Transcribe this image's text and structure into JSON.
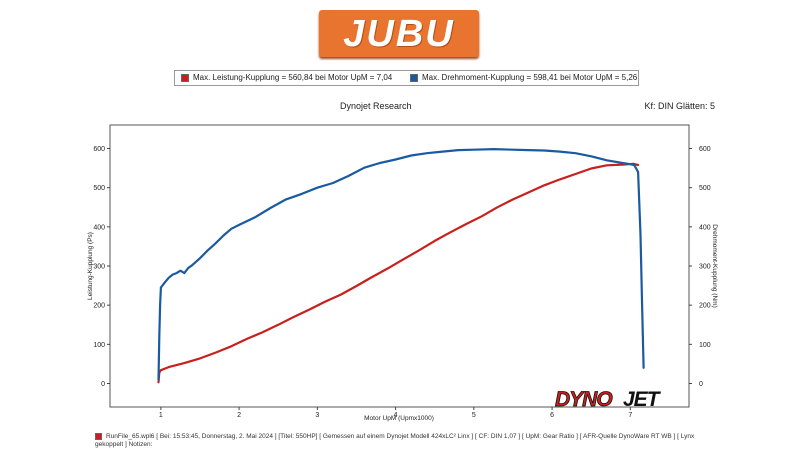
{
  "brand": {
    "logo_text": "JUBU",
    "dyno_logo": {
      "part1": "DYNO",
      "part2": "JET"
    }
  },
  "legend": {
    "items": [
      {
        "label": "Max. Leistung-Kupplung = 560,84 bei Motor UpM = 7,04",
        "color": "#c8201c"
      },
      {
        "label": "Max. Drehmoment-Kupplung = 598,41 bei Motor UpM = 5,26",
        "color": "#1a5aa0"
      }
    ]
  },
  "header": {
    "title": "Dynojet Research",
    "info": "Kf: DIN Glätten: 5"
  },
  "footer": {
    "text": "RunFile_65.wpl6 [ Bei: 15:53:45, Donnerstag, 2. Mai 2024 ] [Titel: 550HP] [ Gemessen auf einem Dynojet Modell 424xLC² Linx ] [ CF: DIN 1,07 ] [ UpM: Gear Ratio ] [ AFR-Quelle DynoWare RT WB ] [ Lynx gekoppelt ] Notizen:",
    "color": "#c8201c"
  },
  "chart_data": {
    "type": "line",
    "xlabel": "Motor UpM (Upmx1000)",
    "ylabel_left": "Leistung-Kupplung (Ps)",
    "ylabel_right": "Drehmoment-Kupplung (Nm)",
    "xlim": [
      0.35,
      7.75
    ],
    "ylim": [
      -60,
      660
    ],
    "x_ticks": [
      1,
      2,
      3,
      4,
      5,
      6,
      7
    ],
    "y_ticks": [
      0,
      100,
      200,
      300,
      400,
      500,
      600
    ],
    "grid": false,
    "legend_placement": "top",
    "series": [
      {
        "name": "Leistung-Kupplung",
        "axis": "left",
        "color": "#c8201c",
        "x": [
          0.97,
          0.98,
          1.0,
          1.05,
          1.1,
          1.2,
          1.3,
          1.5,
          1.7,
          1.9,
          2.1,
          2.3,
          2.5,
          2.7,
          2.9,
          3.1,
          3.3,
          3.5,
          3.7,
          3.9,
          4.1,
          4.3,
          4.5,
          4.7,
          4.9,
          5.1,
          5.3,
          5.5,
          5.7,
          5.9,
          6.1,
          6.3,
          6.5,
          6.7,
          6.9,
          7.04,
          7.1
        ],
        "y": [
          3,
          28,
          34,
          38,
          42,
          47,
          52,
          64,
          79,
          95,
          114,
          131,
          150,
          170,
          189,
          209,
          227,
          249,
          272,
          294,
          317,
          340,
          364,
          386,
          407,
          427,
          450,
          470,
          488,
          506,
          521,
          535,
          549,
          557,
          559,
          560.84,
          558
        ]
      },
      {
        "name": "Drehmoment-Kupplung",
        "axis": "right",
        "color": "#1a5aa0",
        "x": [
          0.97,
          0.98,
          0.99,
          1.0,
          1.05,
          1.1,
          1.15,
          1.2,
          1.25,
          1.3,
          1.35,
          1.4,
          1.5,
          1.6,
          1.7,
          1.8,
          1.9,
          2.0,
          2.2,
          2.4,
          2.6,
          2.8,
          3.0,
          3.2,
          3.4,
          3.6,
          3.8,
          4.0,
          4.2,
          4.4,
          4.6,
          4.8,
          5.0,
          5.26,
          5.5,
          5.7,
          5.9,
          6.1,
          6.3,
          6.5,
          6.7,
          6.9,
          7.0,
          7.05,
          7.1,
          7.13,
          7.15,
          7.17
        ],
        "y": [
          10,
          120,
          200,
          245,
          258,
          270,
          278,
          282,
          288,
          282,
          295,
          302,
          320,
          340,
          358,
          378,
          395,
          405,
          424,
          448,
          470,
          484,
          500,
          512,
          530,
          551,
          563,
          572,
          582,
          588,
          592,
          596,
          597,
          598.41,
          597,
          596,
          595,
          592,
          588,
          580,
          570,
          563,
          560,
          558,
          540,
          380,
          200,
          40
        ]
      }
    ]
  }
}
